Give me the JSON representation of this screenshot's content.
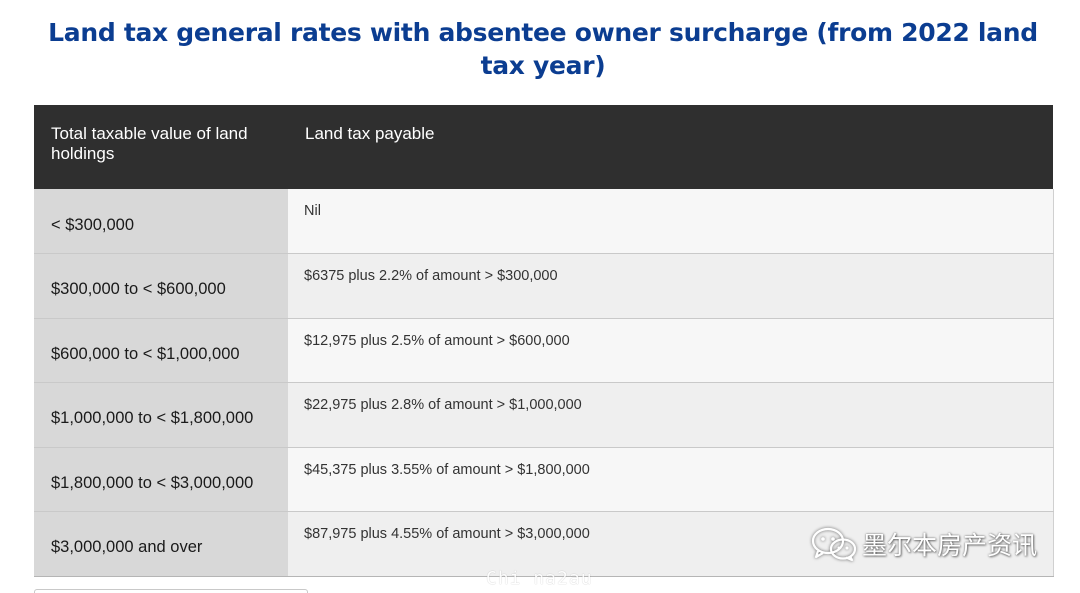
{
  "title": "Land tax general rates with absentee owner surcharge (from 2022 land tax year)",
  "table": {
    "headers": [
      "Total taxable value of land holdings",
      "Land tax payable"
    ],
    "rows": [
      {
        "range": "< $300,000",
        "payable": "Nil"
      },
      {
        "range": "$300,000 to < $600,000",
        "payable": "$6375 plus 2.2% of amount > $300,000"
      },
      {
        "range": "$600,000 to < $1,000,000",
        "payable": "$12,975 plus 2.5% of amount > $600,000"
      },
      {
        "range": "$1,000,000 to < $1,800,000",
        "payable": "$22,975 plus 2.8% of amount > $1,000,000"
      },
      {
        "range": "$1,800,000 to < $3,000,000",
        "payable": "$45,375 plus 3.55% of amount > $1,800,000"
      },
      {
        "range": "$3,000,000 and over",
        "payable": "$87,975 plus 4.55% of amount > $3,000,000"
      }
    ]
  },
  "watermark": {
    "text": "墨尔本房产资讯",
    "sub": "Chi na2au"
  },
  "colors": {
    "title": "#0b3d91",
    "header_bg": "#2f2f2f",
    "range_bg": "#d8d8d8"
  },
  "icons": {
    "watermark_logo": "wechat-icon"
  }
}
